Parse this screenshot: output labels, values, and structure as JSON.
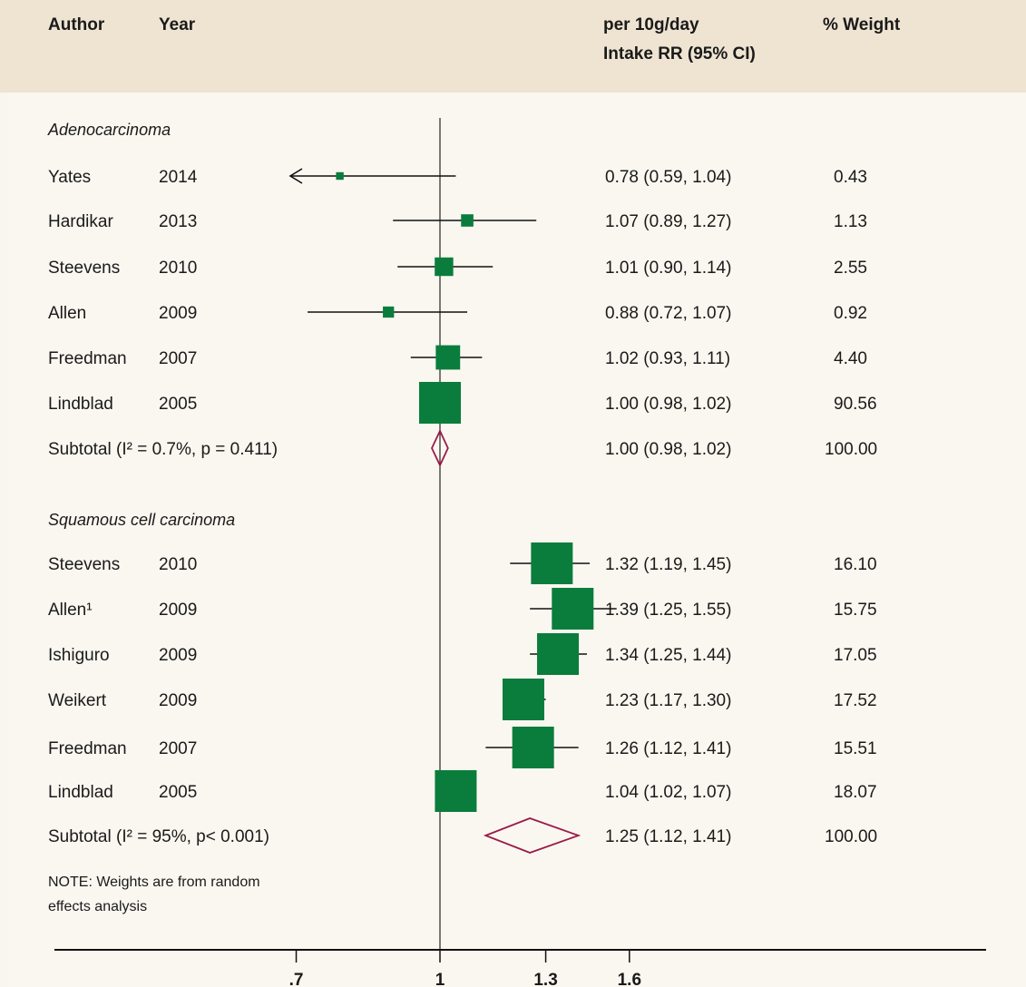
{
  "header": {
    "author": "Author",
    "year": "Year",
    "estimate_line1": "per 10g/day",
    "estimate_line2": "Intake RR (95% CI)",
    "weight": "% Weight"
  },
  "note_line1": "NOTE: Weights are from random",
  "note_line2": "effects analysis",
  "colors": {
    "box": "#0a7d3c",
    "diamond": "#9b1b4a",
    "header_bg": "#efe4d2",
    "panel_bg": "#faf7f0"
  },
  "chart_data": {
    "type": "forest",
    "scale": "log",
    "null_value": 1,
    "xlim": [
      0.55,
      4.5
    ],
    "ticks": [
      0.7,
      1,
      1.3,
      1.6
    ],
    "tick_labels": [
      ".7",
      "1",
      "1.3",
      "1.6"
    ],
    "groups": [
      {
        "name": "Adenocarcinoma",
        "studies": [
          {
            "author": "Yates",
            "year": "2014",
            "rr": 0.78,
            "lo": 0.59,
            "hi": 1.04,
            "weight": 0.43,
            "ci_text": "0.78 (0.59, 1.04)",
            "weight_text": "0.43"
          },
          {
            "author": "Hardikar",
            "year": "2013",
            "rr": 1.07,
            "lo": 0.89,
            "hi": 1.27,
            "weight": 1.13,
            "ci_text": "1.07 (0.89, 1.27)",
            "weight_text": "1.13"
          },
          {
            "author": "Steevens",
            "year": "2010",
            "rr": 1.01,
            "lo": 0.9,
            "hi": 1.14,
            "weight": 2.55,
            "ci_text": "1.01 (0.90, 1.14)",
            "weight_text": "2.55"
          },
          {
            "author": "Allen",
            "year": "2009",
            "rr": 0.88,
            "lo": 0.72,
            "hi": 1.07,
            "weight": 0.92,
            "ci_text": "0.88 (0.72, 1.07)",
            "weight_text": "0.92"
          },
          {
            "author": "Freedman",
            "year": "2007",
            "rr": 1.02,
            "lo": 0.93,
            "hi": 1.11,
            "weight": 4.4,
            "ci_text": "1.02 (0.93, 1.11)",
            "weight_text": "4.40"
          },
          {
            "author": "Lindblad",
            "year": "2005",
            "rr": 1.0,
            "lo": 0.98,
            "hi": 1.02,
            "weight": 90.56,
            "ci_text": "1.00 (0.98, 1.02)",
            "weight_text": "90.56"
          }
        ],
        "subtotal": {
          "label": "Subtotal (I² = 0.7%, p = 0.411)",
          "rr": 1.0,
          "lo": 0.98,
          "hi": 1.02,
          "ci_text": "1.00 (0.98, 1.02)",
          "weight_text": "100.00"
        }
      },
      {
        "name": "Squamous cell carcinoma",
        "studies": [
          {
            "author": "Steevens",
            "year": "2010",
            "rr": 1.32,
            "lo": 1.19,
            "hi": 1.45,
            "weight": 16.1,
            "ci_text": "1.32 (1.19, 1.45)",
            "weight_text": "16.10"
          },
          {
            "author": "Allen¹",
            "year": "2009",
            "rr": 1.39,
            "lo": 1.25,
            "hi": 1.55,
            "weight": 15.75,
            "ci_text": "1.39 (1.25, 1.55)",
            "weight_text": "15.75"
          },
          {
            "author": "Ishiguro",
            "year": "2009",
            "rr": 1.34,
            "lo": 1.25,
            "hi": 1.44,
            "weight": 17.05,
            "ci_text": "1.34 (1.25, 1.44)",
            "weight_text": "17.05"
          },
          {
            "author": "Weikert",
            "year": "2009",
            "rr": 1.23,
            "lo": 1.17,
            "hi": 1.3,
            "weight": 17.52,
            "ci_text": "1.23 (1.17, 1.30)",
            "weight_text": "17.52"
          },
          {
            "author": "Freedman",
            "year": "2007",
            "rr": 1.26,
            "lo": 1.12,
            "hi": 1.41,
            "weight": 15.51,
            "ci_text": "1.26 (1.12, 1.41)",
            "weight_text": "15.51"
          },
          {
            "author": "Lindblad",
            "year": "2005",
            "rr": 1.04,
            "lo": 1.02,
            "hi": 1.07,
            "weight": 18.07,
            "ci_text": "1.04 (1.02, 1.07)",
            "weight_text": "18.07"
          }
        ],
        "subtotal": {
          "label": "Subtotal (I² = 95%, p< 0.001)",
          "rr": 1.25,
          "lo": 1.12,
          "hi": 1.41,
          "ci_text": "1.25 (1.12, 1.41)",
          "weight_text": "100.00"
        }
      }
    ]
  }
}
